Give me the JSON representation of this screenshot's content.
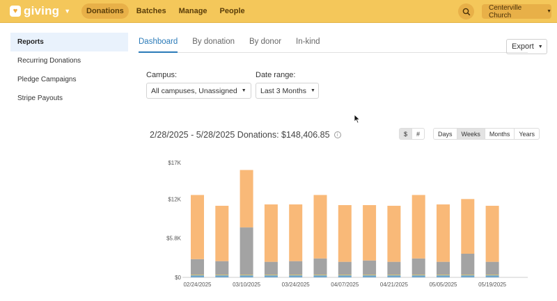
{
  "app": {
    "brand": "giving",
    "church": "Centerville Church"
  },
  "nav": [
    {
      "label": "Donations",
      "active": true
    },
    {
      "label": "Batches",
      "active": false
    },
    {
      "label": "Manage",
      "active": false
    },
    {
      "label": "People",
      "active": false
    }
  ],
  "sidebar": {
    "items": [
      {
        "label": "Reports",
        "active": true
      },
      {
        "label": "Recurring Donations",
        "active": false
      },
      {
        "label": "Pledge Campaigns",
        "active": false
      },
      {
        "label": "Stripe Payouts",
        "active": false
      }
    ]
  },
  "tabs": [
    {
      "label": "Dashboard",
      "active": true
    },
    {
      "label": "By donation",
      "active": false
    },
    {
      "label": "By donor",
      "active": false
    },
    {
      "label": "In-kind",
      "active": false
    }
  ],
  "export_label": "Export",
  "filters": {
    "campus_label": "Campus:",
    "campus_value": "All campuses, Unassigned",
    "date_label": "Date range:",
    "date_value": "Last 3 Months"
  },
  "chart_header": {
    "title": "2/28/2025 - 5/28/2025 Donations: $148,406.85",
    "unit_toggle": [
      {
        "label": "$",
        "active": true
      },
      {
        "label": "#",
        "active": false
      }
    ],
    "period_toggle": [
      {
        "label": "Days",
        "active": false
      },
      {
        "label": "Weeks",
        "active": true
      },
      {
        "label": "Months",
        "active": false
      },
      {
        "label": "Years",
        "active": false
      }
    ]
  },
  "colors": {
    "accent": "#f4c75a",
    "link": "#2a7ab8",
    "series_gray": "#a3a3a3",
    "series_orange": "#f9b978",
    "series_yellow": "#d9c26a",
    "series_blue": "#6fa6cc"
  },
  "chart_data": {
    "type": "bar",
    "stacked": true,
    "y_ticks": [
      "$17K",
      "$12K",
      "$5.8K",
      "$0"
    ],
    "ylim": [
      0,
      17500
    ],
    "x_labels": [
      "02/24/2025",
      "03/10/2025",
      "03/24/2025",
      "04/07/2025",
      "04/21/2025",
      "05/05/2025",
      "05/19/2025"
    ],
    "categories": [
      "02/24/2025",
      "03/03/2025",
      "03/10/2025",
      "03/17/2025",
      "03/24/2025",
      "03/31/2025",
      "04/07/2025",
      "04/14/2025",
      "04/21/2025",
      "04/28/2025",
      "05/05/2025",
      "05/12/2025",
      "05/19/2025"
    ],
    "series": [
      {
        "values": [
          300,
          300,
          300,
          300,
          300,
          300,
          300,
          300,
          300,
          300,
          300,
          300,
          300
        ]
      },
      {
        "values": [
          100,
          100,
          100,
          100,
          100,
          100,
          100,
          100,
          100,
          100,
          100,
          100,
          100
        ]
      },
      {
        "values": [
          2300,
          2000,
          7000,
          1900,
          2000,
          2400,
          1900,
          2100,
          1900,
          2400,
          1900,
          3100,
          1900
        ]
      },
      {
        "values": [
          9500,
          8200,
          8500,
          8500,
          8400,
          9400,
          8400,
          8200,
          8300,
          9400,
          8500,
          8100,
          8300
        ]
      }
    ]
  }
}
